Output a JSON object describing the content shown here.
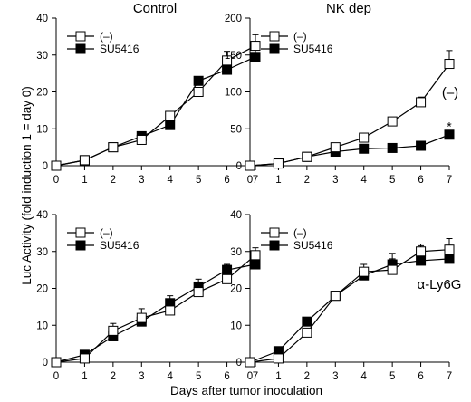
{
  "figure": {
    "ylabel": "Luc Activity (fold induction 1 = day 0)",
    "xlabel": "Days after tumor inoculation",
    "col_titles": [
      "Control",
      "NK dep"
    ],
    "row_titles": [
      "(–)",
      "α-Ly6G"
    ]
  },
  "colors": {
    "ink": "#000000",
    "open_marker_fill": "#ffffff",
    "filled_marker_fill": "#000000"
  },
  "chart_data": [
    {
      "type": "line",
      "panel": "top-left",
      "title": "Control",
      "x": [
        0,
        1,
        2,
        3,
        4,
        5,
        6,
        7
      ],
      "xticks": [
        "0",
        "1",
        "2",
        "3",
        "4",
        "5",
        "6",
        "7"
      ],
      "ylim": [
        0,
        40
      ],
      "yticks": [
        "0",
        "10",
        "20",
        "30",
        "40"
      ],
      "grid": false,
      "legend": "top-left",
      "series": [
        {
          "name": "(–)",
          "marker": "open-square",
          "values": [
            0,
            1.5,
            5,
            7,
            13.5,
            20,
            28.5,
            32.5
          ],
          "errors": [
            0,
            0.4,
            0.6,
            1,
            1,
            1.2,
            2.5,
            3
          ]
        },
        {
          "name": "SU5416",
          "marker": "filled-square",
          "values": [
            0,
            1.5,
            5,
            8,
            11,
            23,
            26,
            29.5
          ],
          "errors": [
            0,
            0.4,
            0.6,
            0.8,
            2,
            1,
            3,
            4
          ]
        }
      ],
      "annotations": []
    },
    {
      "type": "line",
      "panel": "top-right",
      "title": "NK dep",
      "row_title": "(–)",
      "x": [
        0,
        1,
        2,
        3,
        4,
        5,
        6,
        7
      ],
      "xticks": [
        "0",
        "1",
        "2",
        "3",
        "4",
        "5",
        "6",
        "7"
      ],
      "ylim": [
        0,
        200
      ],
      "yticks": [
        "0",
        "50",
        "100",
        "150",
        "200"
      ],
      "grid": false,
      "legend": "top-left",
      "series": [
        {
          "name": "(–)",
          "marker": "open-square",
          "values": [
            0,
            3,
            12,
            25,
            38,
            60,
            86,
            138
          ],
          "errors": [
            0,
            1,
            2,
            3,
            3,
            4,
            7,
            18
          ]
        },
        {
          "name": "SU5416",
          "marker": "filled-square",
          "values": [
            0,
            3,
            12,
            19,
            23,
            24,
            27,
            42
          ],
          "errors": [
            0,
            1,
            1.5,
            2,
            2,
            2,
            3,
            4
          ]
        }
      ],
      "annotations": [
        {
          "text": "*",
          "x": 7,
          "y": 52
        }
      ]
    },
    {
      "type": "line",
      "panel": "bottom-left",
      "x": [
        0,
        1,
        2,
        3,
        4,
        5,
        6,
        7
      ],
      "xticks": [
        "0",
        "1",
        "2",
        "3",
        "4",
        "5",
        "6",
        "7"
      ],
      "ylim": [
        0,
        40
      ],
      "yticks": [
        "0",
        "10",
        "20",
        "30",
        "40"
      ],
      "grid": false,
      "legend": "top-left",
      "series": [
        {
          "name": "(–)",
          "marker": "open-square",
          "values": [
            0,
            1,
            8.5,
            12,
            14,
            19,
            22.5,
            29
          ],
          "errors": [
            0,
            0.5,
            2,
            2.5,
            1.5,
            1.5,
            1.5,
            2
          ]
        },
        {
          "name": "SU5416",
          "marker": "filled-square",
          "values": [
            0,
            2,
            7,
            11,
            16,
            20.5,
            25,
            26.5
          ],
          "errors": [
            0,
            0.5,
            2,
            2,
            2,
            2,
            1.5,
            2.5
          ]
        }
      ],
      "annotations": []
    },
    {
      "type": "line",
      "panel": "bottom-right",
      "row_title": "α-Ly6G",
      "x": [
        0,
        1,
        2,
        3,
        4,
        5,
        6,
        7
      ],
      "xticks": [
        "0",
        "1",
        "2",
        "3",
        "4",
        "5",
        "6",
        "7"
      ],
      "ylim": [
        0,
        40
      ],
      "yticks": [
        "0",
        "10",
        "20",
        "30",
        "40"
      ],
      "grid": false,
      "legend": "top-left",
      "series": [
        {
          "name": "(–)",
          "marker": "open-square",
          "values": [
            0,
            1,
            8,
            18,
            24.5,
            25,
            30,
            30.5
          ],
          "errors": [
            0,
            0.5,
            1,
            1,
            2,
            3,
            2,
            3
          ]
        },
        {
          "name": "SU5416",
          "marker": "filled-square",
          "values": [
            0,
            3,
            11,
            18,
            23.5,
            26.5,
            27.5,
            28
          ],
          "errors": [
            0,
            0.5,
            1,
            1,
            2,
            3,
            4,
            4
          ]
        }
      ],
      "annotations": []
    }
  ]
}
